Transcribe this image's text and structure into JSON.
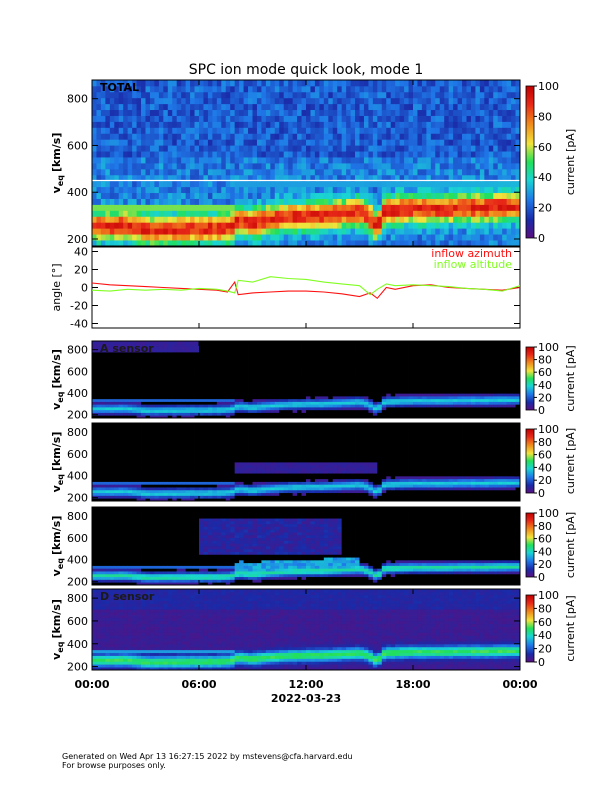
{
  "chart_data": {
    "type": "heatmap",
    "title": "SPC ion mode quick look, mode 1",
    "date_label": "2022-03-23",
    "time_ticks": [
      "00:00",
      "06:00",
      "12:00",
      "18:00",
      "00:00"
    ],
    "time_hours": [
      0,
      6,
      12,
      18,
      24
    ],
    "footer_lines": [
      "Generated on Wed Apr 13 16:27:15 2022 by mstevens@cfa.harvard.edu",
      "For browse purposes only."
    ],
    "colorscale": [
      "#5a0f80",
      "#1a2aa8",
      "#1f78e8",
      "#19d4d4",
      "#22e05a",
      "#f2e43c",
      "#f08a1c",
      "#e82818",
      "#c00000"
    ],
    "spectrogram_ylabel_main": "v",
    "spectrogram_ylabel_sub": "eq",
    "spectrogram_ylabel_unit": "[km/s]",
    "colorbar_label": "current [pA]",
    "colorbar_range": [
      0,
      100
    ],
    "colorbar_ticks": [
      0,
      20,
      40,
      60,
      80,
      100
    ],
    "panels": [
      {
        "label": "TOTAL",
        "ylim": [
          170,
          880
        ],
        "yticks": [
          200,
          400,
          600,
          800
        ],
        "style": "total"
      },
      {
        "label": "A sensor",
        "ylim": [
          170,
          880
        ],
        "yticks": [
          200,
          400,
          600,
          800
        ],
        "style": "sensor_a"
      },
      {
        "label": "",
        "ylim": [
          170,
          880
        ],
        "yticks": [
          200,
          400,
          600,
          800
        ],
        "style": "sensor_b"
      },
      {
        "label": "",
        "ylim": [
          170,
          880
        ],
        "yticks": [
          200,
          400,
          600,
          800
        ],
        "style": "sensor_c"
      },
      {
        "label": "D sensor",
        "ylim": [
          170,
          880
        ],
        "yticks": [
          200,
          400,
          600,
          800
        ],
        "style": "sensor_d"
      }
    ],
    "angle_panel": {
      "ylabel": "angle [°]",
      "ylim": [
        -45,
        45
      ],
      "yticks": [
        -40,
        -20,
        0,
        20,
        40
      ],
      "series": [
        {
          "name": "inflow azimuth",
          "color": "#ff1010",
          "x": [
            0,
            1,
            2,
            3,
            4,
            5,
            6,
            7,
            7.6,
            8.0,
            8.2,
            9,
            10,
            11,
            12,
            13,
            14,
            15,
            15.6,
            16,
            16.5,
            17,
            18,
            19,
            20,
            21,
            22,
            23,
            24
          ],
          "y": [
            5,
            3,
            2,
            1,
            0,
            -1,
            -2,
            -3,
            -5,
            6,
            -8,
            -6,
            -5,
            -4,
            -4,
            -5,
            -7,
            -10,
            -6,
            -12,
            0,
            -2,
            2,
            3,
            0,
            -1,
            -2,
            -3,
            0
          ]
        },
        {
          "name": "inflow altitude",
          "color": "#80ff20",
          "x": [
            0,
            1,
            2,
            3,
            4,
            5,
            6,
            7,
            7.6,
            8.0,
            8.2,
            9,
            10,
            11,
            12,
            13,
            14,
            15,
            15.6,
            16,
            16.5,
            17,
            18,
            19,
            20,
            21,
            22,
            23,
            24
          ],
          "y": [
            -3,
            -4,
            -2,
            -3,
            -2,
            -3,
            -1,
            -2,
            -4,
            -6,
            8,
            6,
            12,
            10,
            9,
            6,
            4,
            2,
            -8,
            -2,
            4,
            2,
            3,
            2,
            1,
            -1,
            -2,
            -4,
            2
          ]
        }
      ]
    }
  }
}
